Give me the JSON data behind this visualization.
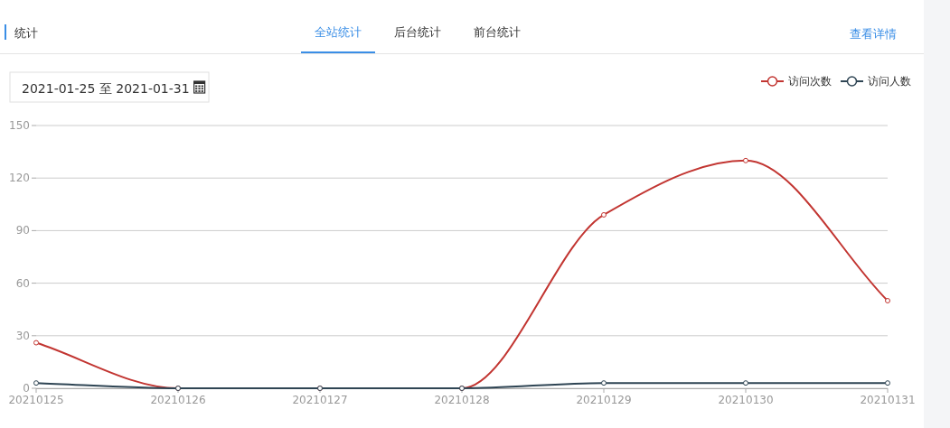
{
  "chart_data": {
    "type": "line",
    "title": "统计",
    "annotations": [
      "全站统计",
      "后台统计",
      "前台统计",
      "查看详情",
      "2021-01-25 至 2021-01-31"
    ],
    "categories": [
      "20210125",
      "20210126",
      "20210127",
      "20210128",
      "20210129",
      "20210130",
      "20210131"
    ],
    "series": [
      {
        "name": "访问次数",
        "color": "#c23531",
        "values": [
          26,
          0,
          0,
          0,
          99,
          130,
          50
        ]
      },
      {
        "name": "访问人数",
        "color": "#2f4554",
        "values": [
          3,
          0,
          0,
          0,
          3,
          3,
          3
        ]
      }
    ],
    "ylim": [
      0,
      150
    ],
    "yticks": [
      0,
      30,
      60,
      90,
      120,
      150
    ],
    "grid": "y",
    "legend": "top right",
    "marker": "circle",
    "line_style": "solid"
  }
}
